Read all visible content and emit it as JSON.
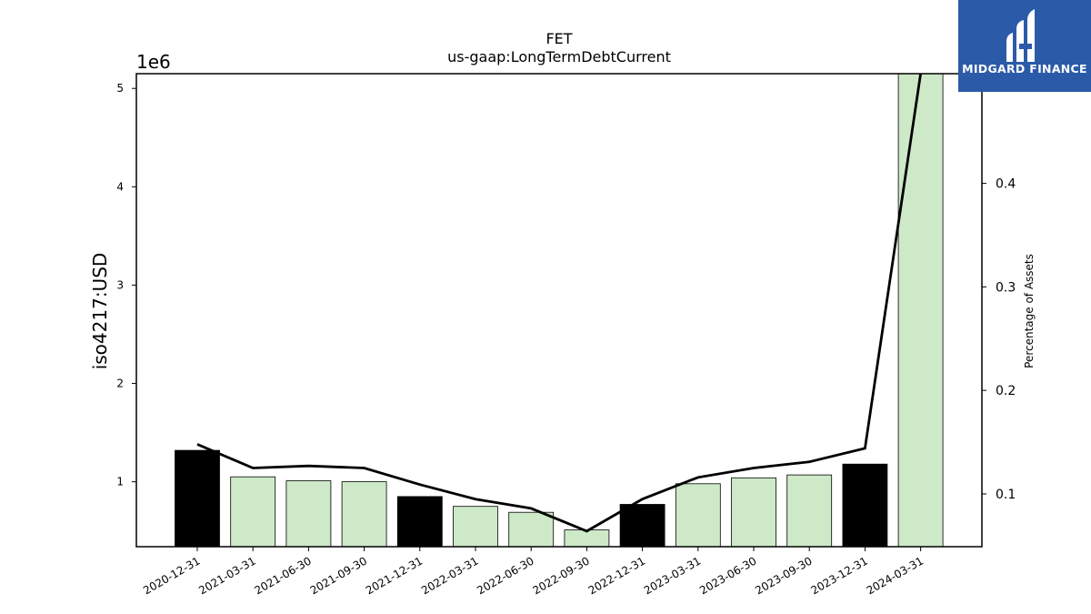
{
  "chart_data": {
    "type": "bar",
    "title": "FET",
    "subtitle": "us-gaap:LongTermDebtCurrent",
    "ylabel": "iso4217:USD",
    "y_offset_label": "1e6",
    "y2label": "Percentage of Assets",
    "ylim": [
      340000,
      5150000
    ],
    "y_ticks": [
      1,
      2,
      3,
      4,
      5
    ],
    "y2lim": [
      0.049,
      0.506
    ],
    "y2_ticks": [
      0.1,
      0.2,
      0.3,
      0.4
    ],
    "categories": [
      "2020-12-31",
      "2021-03-31",
      "2021-06-30",
      "2021-09-30",
      "2021-12-31",
      "2022-03-31",
      "2022-06-30",
      "2022-09-30",
      "2022-12-31",
      "2023-03-31",
      "2023-06-30",
      "2023-09-30",
      "2023-12-31",
      "2024-03-31"
    ],
    "series": [
      {
        "kind": "bar",
        "values": [
          1320000,
          1050000,
          1010000,
          1000000,
          850000,
          750000,
          690000,
          510000,
          770000,
          980000,
          1040000,
          1070000,
          1180000,
          5150000
        ],
        "colors": [
          "#000000",
          "#cde9c8",
          "#cde9c8",
          "#cde9c8",
          "#000000",
          "#cde9c8",
          "#cde9c8",
          "#cde9c8",
          "#000000",
          "#cde9c8",
          "#cde9c8",
          "#cde9c8",
          "#000000",
          "#cde9c8"
        ]
      },
      {
        "kind": "line",
        "axis": "right",
        "values": [
          0.148,
          0.125,
          0.127,
          0.125,
          0.109,
          0.095,
          0.086,
          0.064,
          0.095,
          0.116,
          0.125,
          0.131,
          0.144,
          0.506
        ],
        "color": "#000000"
      }
    ],
    "grid": false,
    "legend": "none"
  },
  "logo": {
    "text": "MIDGARD FINANCE",
    "bg": "#2b5aa8"
  }
}
